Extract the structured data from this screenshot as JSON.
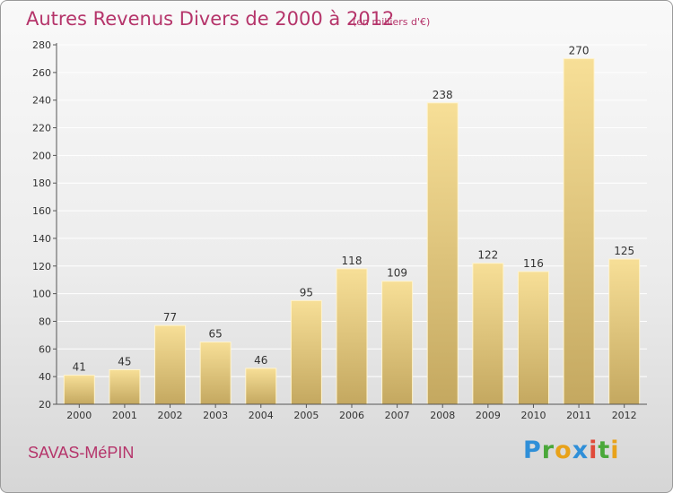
{
  "header": {
    "title": "Autres Revenus Divers de 2000 à 2012",
    "subtitle": "(en milliers d'€)"
  },
  "footer": {
    "location": "SAVAS-MéPIN",
    "brand_letters": [
      {
        "char": "P",
        "color": "#2f8fd8"
      },
      {
        "char": "r",
        "color": "#4aa83a"
      },
      {
        "char": "o",
        "color": "#e8a21a"
      },
      {
        "char": "x",
        "color": "#2f8fd8"
      },
      {
        "char": "i",
        "color": "#e04a3a"
      },
      {
        "char": "t",
        "color": "#4aa83a"
      },
      {
        "char": "i",
        "color": "#e8a21a"
      }
    ]
  },
  "chart_data": {
    "type": "bar",
    "categories": [
      "2000",
      "2001",
      "2002",
      "2003",
      "2004",
      "2005",
      "2006",
      "2007",
      "2008",
      "2009",
      "2010",
      "2011",
      "2012"
    ],
    "values": [
      41,
      45,
      77,
      65,
      46,
      95,
      118,
      109,
      238,
      122,
      116,
      270,
      125
    ],
    "ylim": [
      20,
      280
    ],
    "yticks": [
      20,
      40,
      60,
      80,
      100,
      120,
      140,
      160,
      180,
      200,
      220,
      240,
      260,
      280
    ],
    "grid": true,
    "colors": {
      "bar_light": "#f7df97",
      "bar_dark": "#c4a860",
      "bar_edge": "#fff4cf",
      "axis": "#555555",
      "grid": "#ffffff",
      "text": "#333333"
    }
  }
}
